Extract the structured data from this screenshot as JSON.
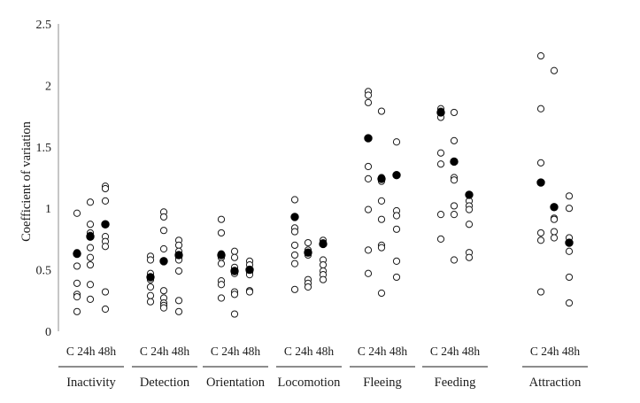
{
  "chart_data": {
    "type": "scatter",
    "ylabel": "Coefficient of variation",
    "xlabel": "",
    "ylim": [
      0,
      2.5
    ],
    "yticks": [
      0,
      0.5,
      1,
      1.5,
      2,
      2.5
    ],
    "ytick_labels": [
      "0",
      "0.5",
      "1",
      "1.5",
      "2",
      "2.5"
    ],
    "conditions": [
      "C",
      "24h",
      "48h"
    ],
    "legend": {
      "individual": "open circle",
      "mean": "filled circle"
    },
    "groups": [
      {
        "name": "Inactivity",
        "subgroups": [
          {
            "condition": "C",
            "points": [
              0.96,
              0.64,
              0.53,
              0.39,
              0.3,
              0.28,
              0.16
            ],
            "mean": 0.63
          },
          {
            "condition": "24h",
            "points": [
              1.05,
              0.87,
              0.8,
              0.78,
              0.68,
              0.6,
              0.54,
              0.38,
              0.26
            ],
            "mean": 0.77
          },
          {
            "condition": "48h",
            "points": [
              1.18,
              1.16,
              1.06,
              0.77,
              0.73,
              0.69,
              0.32,
              0.18
            ],
            "mean": 0.87
          }
        ]
      },
      {
        "name": "Detection",
        "subgroups": [
          {
            "condition": "C",
            "points": [
              0.61,
              0.58,
              0.47,
              0.42,
              0.36,
              0.29,
              0.24
            ],
            "mean": 0.44
          },
          {
            "condition": "24h",
            "points": [
              0.97,
              0.93,
              0.82,
              0.67,
              0.33,
              0.27,
              0.23,
              0.21,
              0.19
            ],
            "mean": 0.57
          },
          {
            "condition": "48h",
            "points": [
              0.74,
              0.7,
              0.65,
              0.6,
              0.58,
              0.49,
              0.25,
              0.16
            ],
            "mean": 0.62
          }
        ]
      },
      {
        "name": "Orientation",
        "subgroups": [
          {
            "condition": "C",
            "points": [
              0.91,
              0.8,
              0.63,
              0.6,
              0.55,
              0.41,
              0.38,
              0.27
            ],
            "mean": 0.62
          },
          {
            "condition": "24h",
            "points": [
              0.65,
              0.6,
              0.52,
              0.47,
              0.32,
              0.3,
              0.14
            ],
            "mean": 0.49
          },
          {
            "condition": "48h",
            "points": [
              0.57,
              0.54,
              0.48,
              0.46,
              0.33,
              0.32
            ],
            "mean": 0.5
          }
        ]
      },
      {
        "name": "Locomotion",
        "subgroups": [
          {
            "condition": "C",
            "points": [
              1.07,
              0.84,
              0.81,
              0.7,
              0.62,
              0.55,
              0.34
            ],
            "mean": 0.93
          },
          {
            "condition": "24h",
            "points": [
              0.72,
              0.66,
              0.62,
              0.42,
              0.39,
              0.36
            ],
            "mean": 0.64
          },
          {
            "condition": "48h",
            "points": [
              0.74,
              0.72,
              0.58,
              0.54,
              0.49,
              0.46,
              0.42
            ],
            "mean": 0.71
          }
        ]
      },
      {
        "name": "Fleeing",
        "subgroups": [
          {
            "condition": "C",
            "points": [
              1.95,
              1.92,
              1.86,
              1.34,
              1.24,
              0.99,
              0.66,
              0.47
            ],
            "mean": 1.57
          },
          {
            "condition": "24h",
            "points": [
              1.79,
              1.25,
              1.22,
              1.06,
              0.91,
              0.7,
              0.68,
              0.31
            ],
            "mean": 1.24
          },
          {
            "condition": "48h",
            "points": [
              1.54,
              0.98,
              0.94,
              0.83,
              0.57,
              0.44
            ],
            "mean": 1.27
          }
        ]
      },
      {
        "name": "Feeding",
        "subgroups": [
          {
            "condition": "C",
            "points": [
              1.81,
              1.79,
              1.74,
              1.45,
              1.36,
              0.95,
              0.75
            ],
            "mean": 1.78
          },
          {
            "condition": "24h",
            "points": [
              1.78,
              1.55,
              1.25,
              1.23,
              1.02,
              0.95,
              0.58
            ],
            "mean": 1.38
          },
          {
            "condition": "48h",
            "points": [
              1.06,
              1.02,
              0.99,
              0.87,
              0.64,
              0.6
            ],
            "mean": 1.11
          }
        ]
      },
      {
        "name": "Attraction",
        "subgroups": [
          {
            "condition": "C",
            "points": [
              2.24,
              1.81,
              1.37,
              0.8,
              0.74,
              0.32
            ],
            "mean": 1.21
          },
          {
            "condition": "24h",
            "points": [
              2.12,
              0.92,
              0.91,
              0.81,
              0.76
            ],
            "mean": 1.01
          },
          {
            "condition": "48h",
            "points": [
              1.1,
              1.0,
              0.76,
              0.65,
              0.44,
              0.23
            ],
            "mean": 0.72
          }
        ]
      }
    ]
  }
}
